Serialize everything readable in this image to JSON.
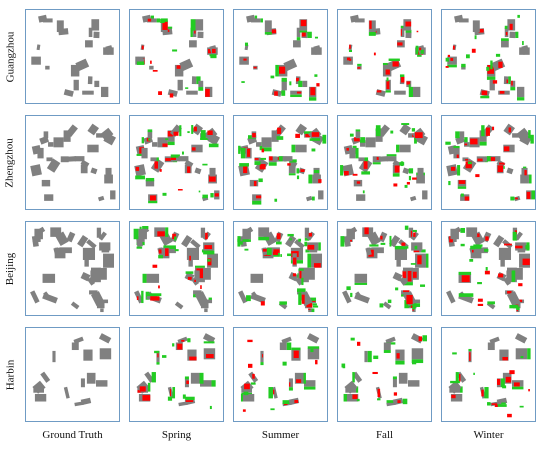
{
  "figure": {
    "rows": [
      "Guangzhou",
      "Zhengzhou",
      "Beijing",
      "Harbin"
    ],
    "columns": [
      "Ground Truth",
      "Spring",
      "Summer",
      "Fall",
      "Winter"
    ],
    "legend_colors": {
      "building": "#808080",
      "false_negative": "#ff0000",
      "false_positive": "#22cc22",
      "border": "#6f9bc4"
    }
  }
}
